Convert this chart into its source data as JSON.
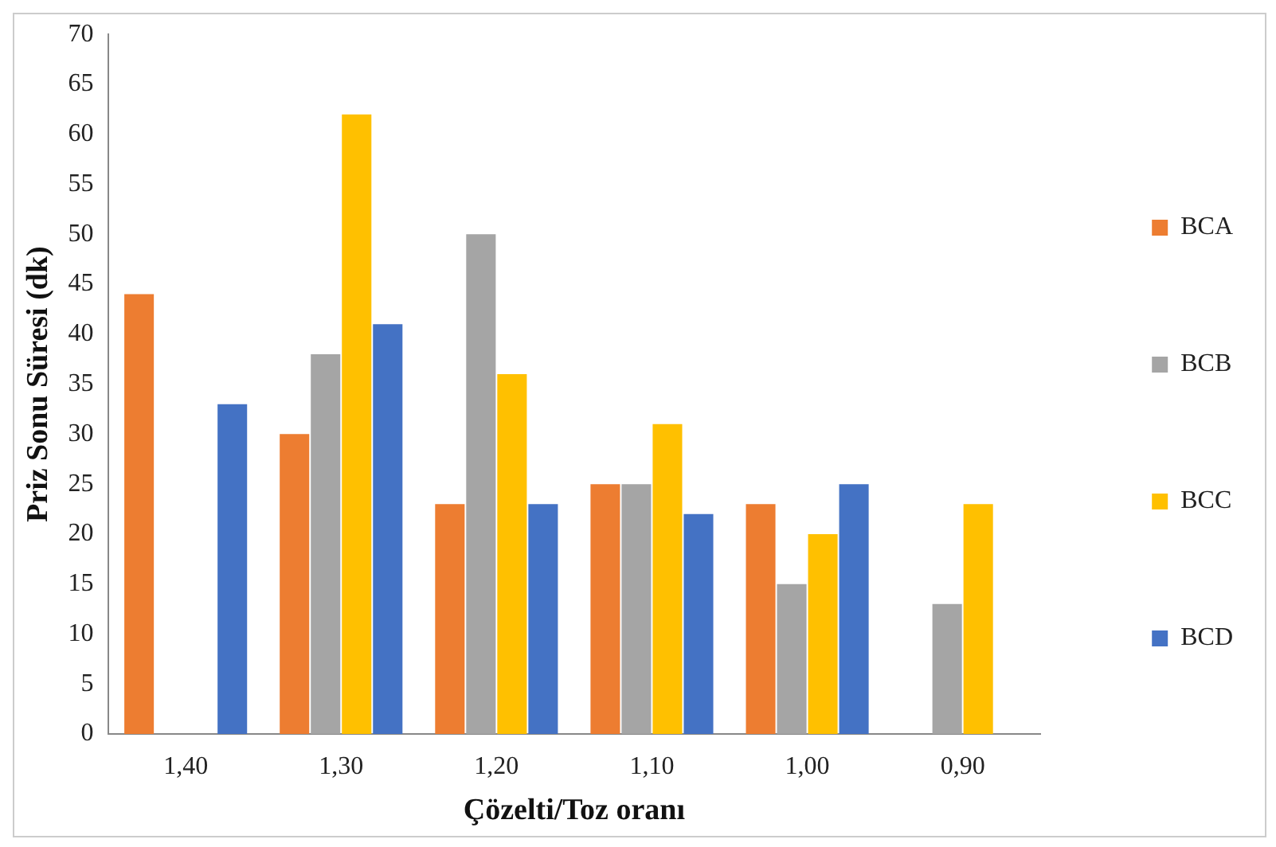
{
  "chart_data": {
    "type": "bar",
    "xlabel": "Çözelti/Toz oranı",
    "ylabel": "Priz Sonu Süresi (dk)",
    "categories": [
      "1,40",
      "1,30",
      "1,20",
      "1,10",
      "1,00",
      "0,90"
    ],
    "series": [
      {
        "name": "BCA",
        "color": "#ed7d31",
        "values": [
          44,
          30,
          23,
          25,
          23,
          null
        ]
      },
      {
        "name": "BCB",
        "color": "#a5a5a5",
        "values": [
          null,
          38,
          50,
          25,
          15,
          13
        ]
      },
      {
        "name": "BCC",
        "color": "#ffc000",
        "values": [
          null,
          62,
          36,
          31,
          20,
          23
        ]
      },
      {
        "name": "BCD",
        "color": "#4472c4",
        "values": [
          33,
          41,
          23,
          22,
          25,
          null
        ]
      }
    ],
    "ylim": [
      0,
      70
    ],
    "yticks": [
      0,
      5,
      10,
      15,
      20,
      25,
      30,
      35,
      40,
      45,
      50,
      55,
      60,
      65,
      70
    ],
    "grid": false,
    "legend": "right"
  }
}
